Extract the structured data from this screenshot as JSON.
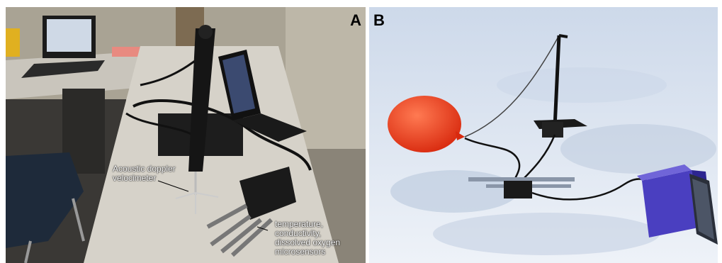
{
  "panels": {
    "a": {
      "letter": "A",
      "annotations": {
        "adv": [
          "Acoustic doppler",
          "velocimeter"
        ],
        "sensors": [
          "temperature,",
          "conductivity,",
          "dissolved oxygen",
          "microsensors"
        ]
      }
    },
    "b": {
      "letter": "B"
    }
  },
  "colors": {
    "balloon": "#e8341a",
    "snow": "#e9eef6",
    "sky_blue_shadow": "#b9c8dc",
    "instrument_box": "#4a3fc0"
  }
}
